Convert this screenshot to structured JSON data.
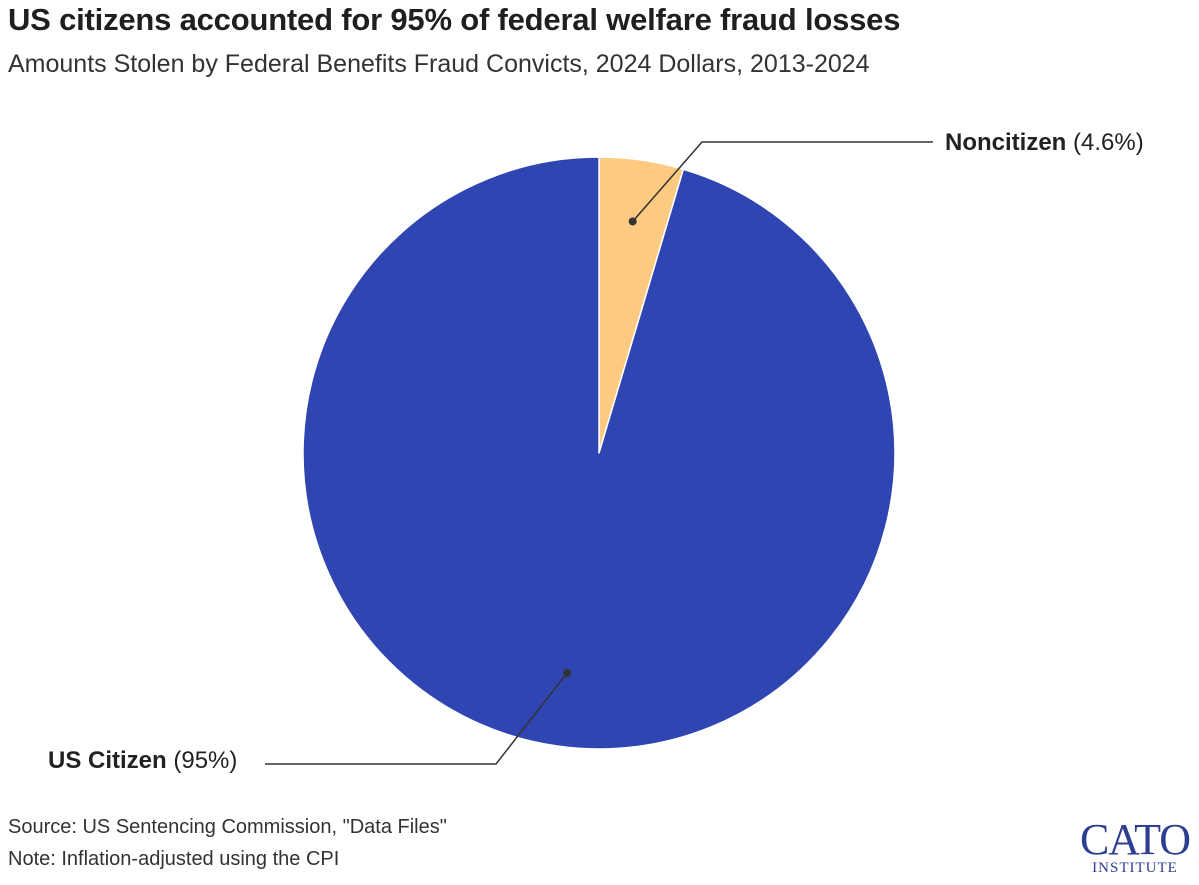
{
  "title": "US citizens accounted for 95% of federal welfare fraud losses",
  "subtitle": "Amounts Stolen by Federal Benefits Fraud Convicts, 2024 Dollars, 2013-2024",
  "source": "Source: US Sentencing Commission, \"Data Files\"",
  "note": "Note: Inflation-adjusted using the CPI",
  "logo": {
    "main": "CATO",
    "sub": "INSTITUTE"
  },
  "colors": {
    "us_citizen": "#2f45b1",
    "noncitizen": "#fdca82",
    "leader": "#333333"
  },
  "chart_data": {
    "type": "pie",
    "title": "US citizens accounted for 95% of federal welfare fraud losses",
    "subtitle": "Amounts Stolen by Federal Benefits Fraud Convicts, 2024 Dollars, 2013-2024",
    "slices": [
      {
        "label": "Noncitizen",
        "value_label": "(4.6%)",
        "value": 4.6
      },
      {
        "label": "US Citizen",
        "value_label": "(95%)",
        "value": 95.4
      }
    ]
  }
}
